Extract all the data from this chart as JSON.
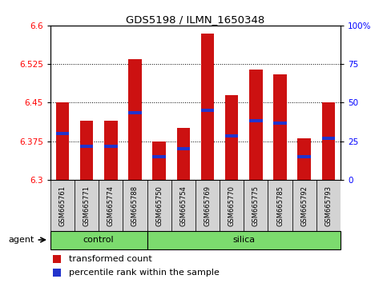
{
  "title": "GDS5198 / ILMN_1650348",
  "samples": [
    "GSM665761",
    "GSM665771",
    "GSM665774",
    "GSM665788",
    "GSM665750",
    "GSM665754",
    "GSM665769",
    "GSM665770",
    "GSM665775",
    "GSM665785",
    "GSM665792",
    "GSM665793"
  ],
  "groups": [
    "control",
    "control",
    "control",
    "control",
    "silica",
    "silica",
    "silica",
    "silica",
    "silica",
    "silica",
    "silica",
    "silica"
  ],
  "bar_values": [
    6.45,
    6.415,
    6.415,
    6.535,
    6.375,
    6.4,
    6.585,
    6.465,
    6.515,
    6.505,
    6.38,
    6.45
  ],
  "percentile_values": [
    6.39,
    6.365,
    6.365,
    6.43,
    6.345,
    6.36,
    6.435,
    6.385,
    6.415,
    6.41,
    6.345,
    6.38
  ],
  "ylim_left": [
    6.3,
    6.6
  ],
  "ylim_right": [
    0,
    100
  ],
  "yticks_left": [
    6.3,
    6.375,
    6.45,
    6.525,
    6.6
  ],
  "yticks_right": [
    0,
    25,
    50,
    75,
    100
  ],
  "ytick_labels_right": [
    "0",
    "25",
    "50",
    "75",
    "100%"
  ],
  "bar_color": "#cc1111",
  "percentile_color": "#2233cc",
  "bar_bottom": 6.3,
  "control_count": 4,
  "silica_count": 8,
  "legend_items": [
    "transformed count",
    "percentile rank within the sample"
  ],
  "green_color": "#7cdb6e",
  "gray_color": "#d3d3d3"
}
